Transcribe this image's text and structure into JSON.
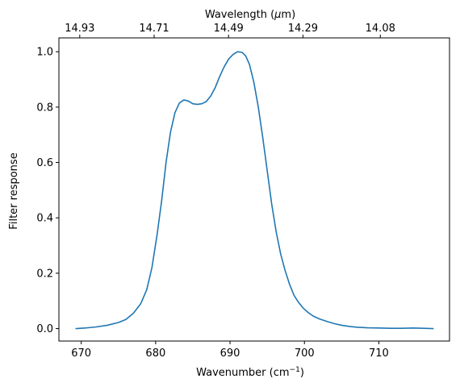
{
  "chart_data": {
    "type": "line",
    "xlabel": "Wavenumber (cm$^{-1}$)",
    "xlabel_main": "Wavenumber (cm",
    "xlabel_sup": "−1",
    "xlabel_close": ")",
    "ylabel": "Filter response",
    "top_xlabel": "Wavelength ($\\mu$m)",
    "top_xlabel_pre": "Wavelength (",
    "top_xlabel_mu": "μ",
    "top_xlabel_post": "m)",
    "xlim": [
      667,
      719.5
    ],
    "ylim": [
      -0.045,
      1.05
    ],
    "xticks": [
      670,
      680,
      690,
      700,
      710
    ],
    "xtick_labels": [
      "670",
      "680",
      "690",
      "700",
      "710"
    ],
    "yticks": [
      0.0,
      0.2,
      0.4,
      0.6,
      0.8,
      1.0
    ],
    "ytick_labels": [
      "0.0",
      "0.2",
      "0.4",
      "0.6",
      "0.8",
      "1.0"
    ],
    "top_ticks_wavenumber": [
      669.8,
      679.8,
      689.8,
      699.8,
      710.2
    ],
    "top_tick_labels": [
      "14.93",
      "14.71",
      "14.49",
      "14.29",
      "14.08"
    ],
    "grid": false,
    "color": "#1f77b4",
    "series": [
      {
        "x": [
          669.3,
          670.5,
          672.0,
          673.5,
          675.0,
          676.0,
          677.0,
          678.0,
          678.8,
          679.5,
          680.2,
          680.8,
          681.4,
          682.0,
          682.6,
          683.2,
          683.8,
          684.4,
          685.0,
          685.6,
          686.2,
          686.8,
          687.4,
          688.0,
          688.6,
          689.2,
          689.8,
          690.4,
          691.0,
          691.6,
          692.1,
          692.6,
          693.2,
          693.8,
          694.4,
          695.0,
          695.6,
          696.2,
          696.8,
          697.4,
          698.0,
          698.6,
          699.2,
          699.8,
          700.5,
          701.2,
          702.0,
          703.0,
          704.0,
          705.0,
          706.0,
          707.0,
          708.5,
          710.0,
          711.5,
          713.0,
          714.5,
          716.0,
          717.3
        ],
        "y": [
          0.0,
          0.002,
          0.006,
          0.012,
          0.022,
          0.033,
          0.055,
          0.09,
          0.14,
          0.22,
          0.34,
          0.46,
          0.6,
          0.71,
          0.78,
          0.815,
          0.826,
          0.822,
          0.812,
          0.81,
          0.812,
          0.82,
          0.84,
          0.87,
          0.91,
          0.945,
          0.973,
          0.99,
          1.0,
          0.998,
          0.985,
          0.955,
          0.89,
          0.8,
          0.69,
          0.57,
          0.45,
          0.35,
          0.27,
          0.21,
          0.16,
          0.12,
          0.095,
          0.075,
          0.058,
          0.045,
          0.035,
          0.026,
          0.018,
          0.012,
          0.008,
          0.005,
          0.003,
          0.002,
          0.001,
          0.001,
          0.002,
          0.001,
          0.0
        ]
      }
    ]
  }
}
